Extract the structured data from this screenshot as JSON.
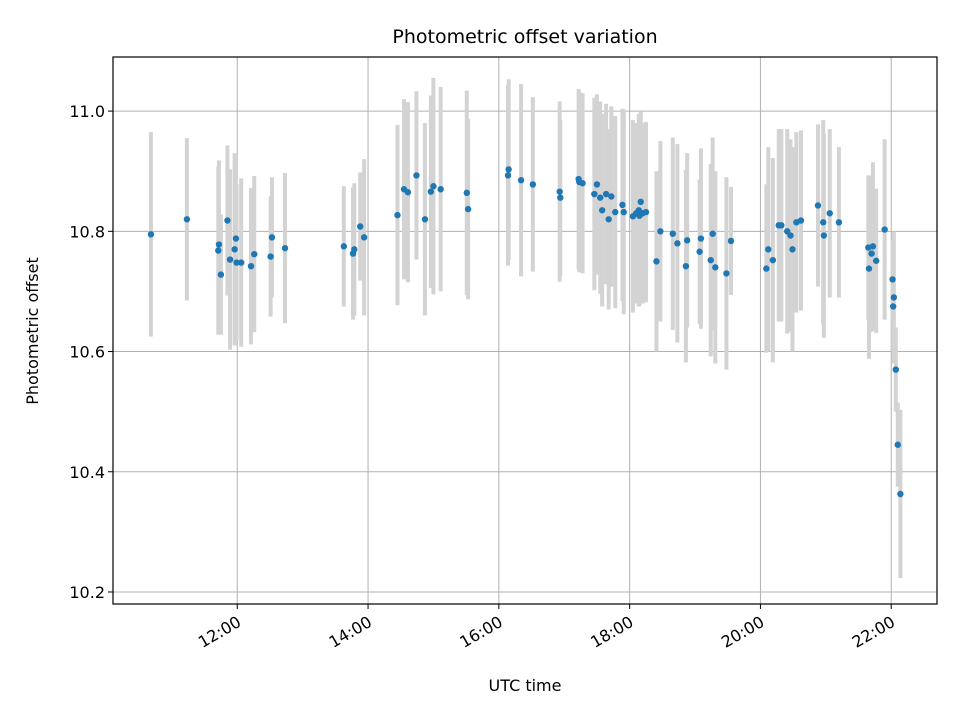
{
  "chart_data": {
    "type": "scatter",
    "title": "Photometric offset variation",
    "xlabel": "UTC time",
    "ylabel": "Photometric offset",
    "x_ticks": [
      "12:00",
      "14:00",
      "16:00",
      "18:00",
      "20:00",
      "22:00"
    ],
    "x_tick_hours": [
      12,
      14,
      16,
      18,
      20,
      22
    ],
    "y_ticks": [
      "10.2",
      "10.4",
      "10.6",
      "10.8",
      "11.0"
    ],
    "y_tick_values": [
      10.2,
      10.4,
      10.6,
      10.8,
      11.0
    ],
    "xlim_hours": [
      10.1,
      22.7
    ],
    "ylim": [
      10.18,
      11.09
    ],
    "grid": true,
    "colors": {
      "marker": "#1f77b4",
      "errorbar": "#d3d3d3",
      "grid": "#b0b0b0"
    },
    "x_hours": [
      10.68,
      11.23,
      11.71,
      11.72,
      11.75,
      11.85,
      11.89,
      11.96,
      11.98,
      11.99,
      12.06,
      12.21,
      12.26,
      12.51,
      12.53,
      12.73,
      13.63,
      13.77,
      13.79,
      13.88,
      13.94,
      14.45,
      14.55,
      14.61,
      14.74,
      14.87,
      14.96,
      15.0,
      15.11,
      15.51,
      15.53,
      16.14,
      16.15,
      16.34,
      16.52,
      16.93,
      16.94,
      17.22,
      17.23,
      17.28,
      17.46,
      17.5,
      17.55,
      17.58,
      17.64,
      17.68,
      17.72,
      17.78,
      17.89,
      17.91,
      18.05,
      18.1,
      18.14,
      18.15,
      18.17,
      18.2,
      18.25,
      18.41,
      18.47,
      18.66,
      18.73,
      18.86,
      18.88,
      19.07,
      19.09,
      19.24,
      19.27,
      19.31,
      19.48,
      19.55,
      20.09,
      20.12,
      20.19,
      20.28,
      20.32,
      20.41,
      20.46,
      20.49,
      20.55,
      20.62,
      20.88,
      20.96,
      20.97,
      21.06,
      21.2,
      21.65,
      21.66,
      21.7,
      21.72,
      21.77,
      21.9,
      22.02,
      22.03,
      22.04,
      22.07,
      22.1,
      22.14
    ],
    "y_values": [
      10.795,
      10.82,
      10.768,
      10.778,
      10.728,
      10.818,
      10.753,
      10.77,
      10.788,
      10.748,
      10.748,
      10.742,
      10.762,
      10.758,
      10.79,
      10.772,
      10.775,
      10.763,
      10.77,
      10.808,
      10.79,
      10.827,
      10.87,
      10.865,
      10.893,
      10.82,
      10.866,
      10.875,
      10.87,
      10.864,
      10.837,
      10.893,
      10.903,
      10.885,
      10.878,
      10.866,
      10.856,
      10.887,
      10.882,
      10.88,
      10.862,
      10.878,
      10.856,
      10.835,
      10.862,
      10.82,
      10.858,
      10.832,
      10.844,
      10.832,
      10.825,
      10.83,
      10.835,
      10.826,
      10.849,
      10.83,
      10.832,
      10.75,
      10.8,
      10.796,
      10.78,
      10.742,
      10.785,
      10.766,
      10.788,
      10.752,
      10.796,
      10.74,
      10.73,
      10.784,
      10.738,
      10.77,
      10.752,
      10.81,
      10.81,
      10.8,
      10.793,
      10.77,
      10.815,
      10.818,
      10.843,
      10.815,
      10.793,
      10.83,
      10.815,
      10.773,
      10.738,
      10.763,
      10.775,
      10.751,
      10.803,
      10.72,
      10.675,
      10.69,
      10.57,
      10.445,
      10.363
    ],
    "y_errors": [
      0.17,
      0.135,
      0.14,
      0.14,
      0.1,
      0.125,
      0.15,
      0.16,
      0.14,
      0.13,
      0.14,
      0.13,
      0.13,
      0.1,
      0.1,
      0.125,
      0.1,
      0.11,
      0.11,
      0.09,
      0.13,
      0.15,
      0.15,
      0.15,
      0.14,
      0.16,
      0.16,
      0.18,
      0.17,
      0.17,
      0.15,
      0.15,
      0.15,
      0.16,
      0.145,
      0.15,
      0.13,
      0.15,
      0.15,
      0.15,
      0.16,
      0.15,
      0.16,
      0.16,
      0.15,
      0.15,
      0.15,
      0.16,
      0.16,
      0.17,
      0.16,
      0.15,
      0.16,
      0.15,
      0.15,
      0.15,
      0.15,
      0.15,
      0.15,
      0.16,
      0.165,
      0.16,
      0.145,
      0.12,
      0.15,
      0.16,
      0.16,
      0.16,
      0.16,
      0.09,
      0.14,
      0.17,
      0.17,
      0.16,
      0.16,
      0.17,
      0.16,
      0.17,
      0.15,
      0.15,
      0.135,
      0.17,
      0.17,
      0.14,
      0.125,
      0.12,
      0.15,
      0.13,
      0.14,
      0.12,
      0.15,
      0.065,
      0.075,
      0.11,
      0.07,
      0.07,
      0.14
    ]
  }
}
